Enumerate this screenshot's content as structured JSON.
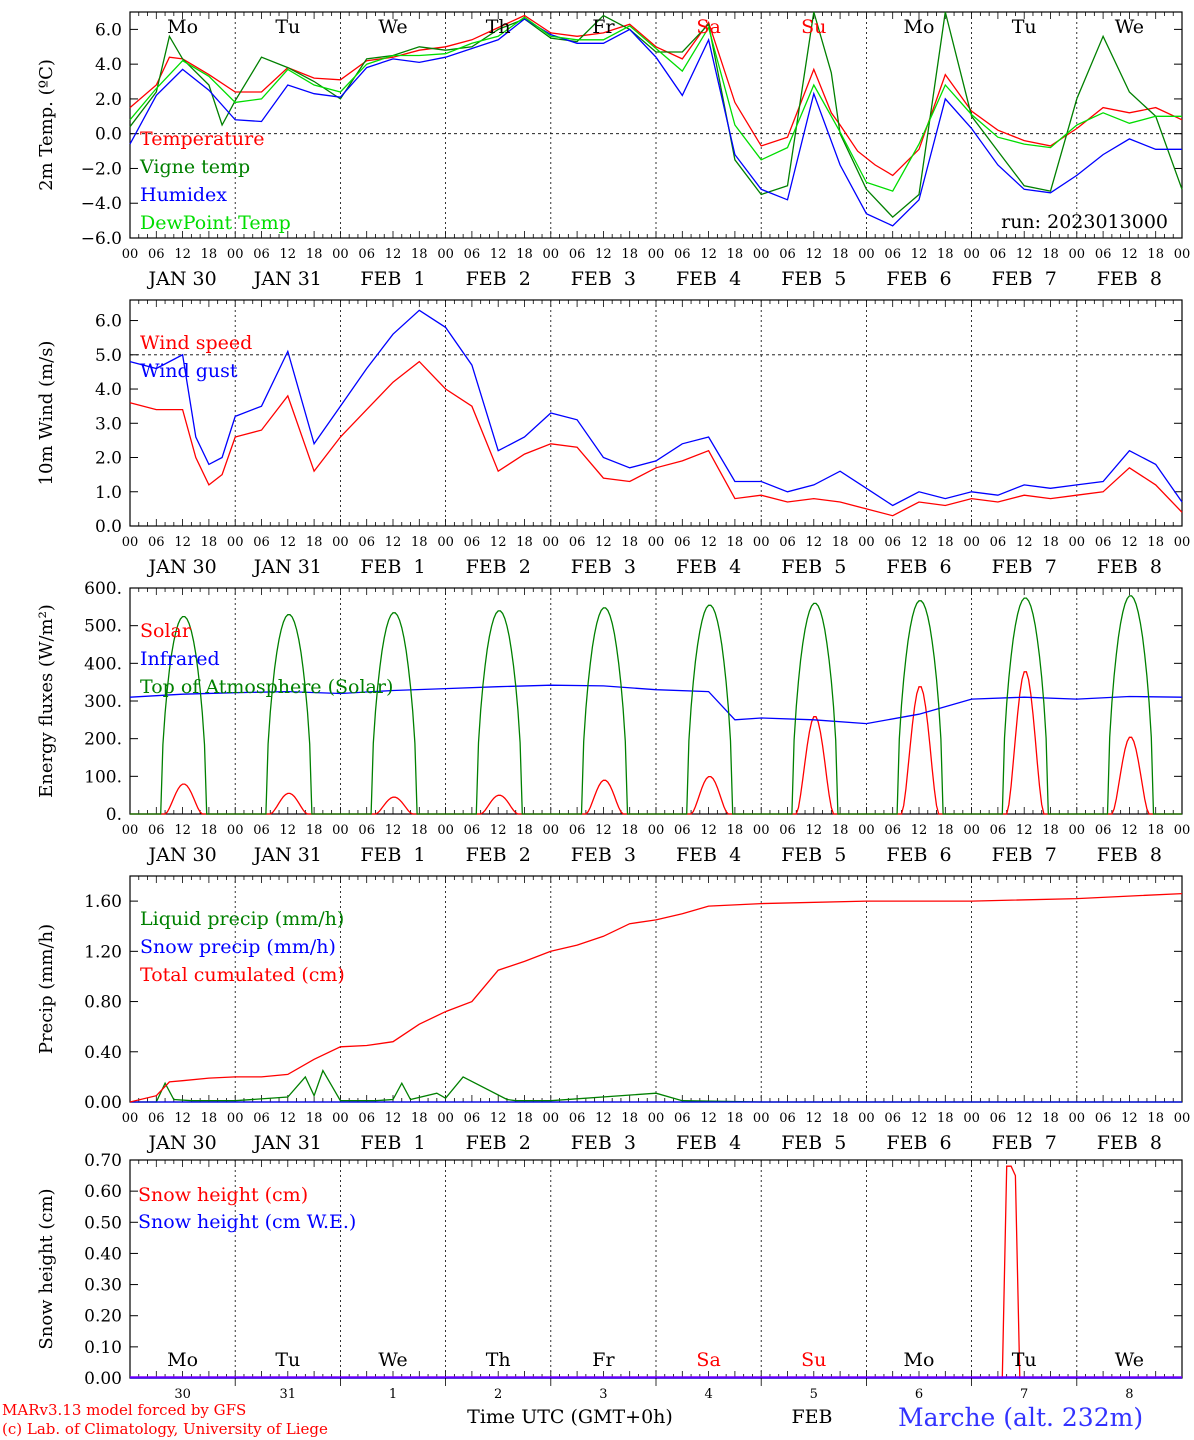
{
  "chart_data": [
    {
      "type": "line",
      "panel": "temperature",
      "ylabel": "2m Temp. (ºC)",
      "ylim": [
        -6,
        7
      ],
      "yticks": [
        "6.0",
        "4.0",
        "2.0",
        "0.0",
        "−2.0",
        "−4.0",
        "−6.0"
      ],
      "ytick_values": [
        6,
        4,
        2,
        0,
        -2,
        -4,
        -6
      ],
      "dashed_hline": 0,
      "day_labels": [
        "Mo",
        "Tu",
        "We",
        "Th",
        "Fr",
        "Sa",
        "Su",
        "Mo",
        "Tu",
        "We"
      ],
      "weekend_days": [
        "Sa",
        "Su"
      ],
      "run_label": "run: 2023013000",
      "x_unit": "hours since 2023-01-30 00 UTC",
      "series": [
        {
          "name": "Temperature",
          "color": "#ff0000",
          "x": [
            0,
            6,
            9,
            12,
            18,
            24,
            30,
            36,
            42,
            48,
            54,
            60,
            66,
            72,
            78,
            84,
            90,
            96,
            102,
            108,
            114,
            120,
            126,
            132,
            138,
            144,
            150,
            156,
            160,
            162,
            166,
            170,
            174,
            180,
            186,
            192,
            198,
            204,
            210,
            216,
            222,
            228,
            234,
            240
          ],
          "y": [
            1.5,
            2.8,
            4.4,
            4.3,
            3.4,
            2.4,
            2.4,
            3.8,
            3.2,
            3.1,
            4.2,
            4.4,
            4.8,
            5.0,
            5.4,
            6.1,
            6.8,
            5.8,
            5.6,
            5.8,
            6.3,
            5.0,
            4.3,
            6.4,
            1.8,
            -0.7,
            -0.2,
            3.7,
            1.2,
            0.5,
            -1.0,
            -1.8,
            -2.4,
            -0.9,
            3.4,
            1.3,
            0.2,
            -0.4,
            -0.7,
            0.3,
            1.5,
            1.2,
            1.5,
            0.8
          ]
        },
        {
          "name": "Vigne temp",
          "color": "#008000",
          "x": [
            0,
            6,
            9,
            12,
            18,
            21,
            24,
            30,
            36,
            42,
            48,
            54,
            60,
            66,
            72,
            78,
            84,
            90,
            96,
            102,
            108,
            114,
            120,
            126,
            132,
            138,
            144,
            150,
            156,
            160,
            162,
            168,
            174,
            180,
            186,
            192,
            198,
            204,
            210,
            216,
            222,
            228,
            234,
            240
          ],
          "y": [
            0.4,
            2.4,
            5.6,
            4.3,
            2.8,
            0.5,
            1.9,
            4.4,
            3.8,
            3.0,
            2.0,
            4.3,
            4.5,
            5.0,
            4.8,
            5.0,
            6.0,
            6.6,
            5.5,
            5.3,
            6.8,
            6.0,
            4.7,
            4.7,
            6.3,
            -1.5,
            -3.5,
            -3.0,
            7.0,
            3.5,
            0,
            -3.2,
            -4.8,
            -3.5,
            7.0,
            1.0,
            -1.0,
            -3.0,
            -3.3,
            2.0,
            5.6,
            2.4,
            1.0,
            -3.2
          ]
        },
        {
          "name": "Humidex",
          "color": "#0000ff",
          "x": [
            0,
            6,
            12,
            18,
            24,
            30,
            36,
            42,
            48,
            54,
            60,
            66,
            72,
            78,
            84,
            90,
            96,
            102,
            108,
            114,
            120,
            126,
            132,
            138,
            144,
            150,
            156,
            162,
            168,
            174,
            180,
            186,
            192,
            198,
            204,
            210,
            216,
            222,
            228,
            234,
            240
          ],
          "y": [
            -0.6,
            2.2,
            3.7,
            2.5,
            0.8,
            0.7,
            2.8,
            2.3,
            2.1,
            3.8,
            4.3,
            4.1,
            4.4,
            4.9,
            5.4,
            6.6,
            5.7,
            5.2,
            5.2,
            6.0,
            4.4,
            2.2,
            5.4,
            -1.2,
            -3.2,
            -3.8,
            2.3,
            -1.8,
            -4.6,
            -5.3,
            -3.8,
            2.0,
            0.3,
            -1.8,
            -3.2,
            -3.4,
            -2.4,
            -1.2,
            -0.3,
            -0.9,
            -0.9
          ]
        },
        {
          "name": "DewPoint Temp",
          "color": "#00dd00",
          "x": [
            0,
            6,
            12,
            18,
            24,
            30,
            36,
            42,
            48,
            54,
            60,
            66,
            72,
            78,
            84,
            90,
            96,
            102,
            108,
            114,
            120,
            126,
            132,
            138,
            144,
            150,
            156,
            162,
            168,
            174,
            180,
            186,
            192,
            198,
            204,
            210,
            216,
            222,
            228,
            234,
            240
          ],
          "y": [
            0.8,
            2.6,
            4.2,
            3.3,
            1.8,
            2.0,
            3.7,
            2.8,
            2.4,
            4.0,
            4.5,
            4.5,
            4.6,
            5.2,
            5.6,
            6.7,
            5.6,
            5.4,
            5.4,
            6.2,
            4.9,
            3.6,
            6.1,
            0.5,
            -1.5,
            -0.8,
            2.8,
            0.1,
            -2.8,
            -3.3,
            -0.6,
            2.8,
            1.1,
            -0.2,
            -0.6,
            -0.8,
            0.5,
            1.2,
            0.6,
            1.0,
            1.0
          ]
        }
      ]
    },
    {
      "type": "line",
      "panel": "wind",
      "ylabel": "10m Wind (m/s)",
      "ylim": [
        0,
        6.6
      ],
      "yticks": [
        "6.0",
        "5.0",
        "4.0",
        "3.0",
        "2.0",
        "1.0",
        "0.0"
      ],
      "ytick_values": [
        6,
        5,
        4,
        3,
        2,
        1,
        0
      ],
      "dashed_hline": 5,
      "series": [
        {
          "name": "Wind speed",
          "color": "#ff0000",
          "x": [
            0,
            6,
            12,
            15,
            18,
            21,
            24,
            30,
            36,
            42,
            48,
            54,
            60,
            66,
            72,
            78,
            84,
            90,
            96,
            102,
            108,
            114,
            120,
            126,
            132,
            138,
            144,
            150,
            156,
            162,
            168,
            174,
            180,
            186,
            192,
            198,
            204,
            210,
            216,
            222,
            228,
            234,
            240
          ],
          "y": [
            3.6,
            3.4,
            3.4,
            2.0,
            1.2,
            1.5,
            2.6,
            2.8,
            3.8,
            1.6,
            2.6,
            3.4,
            4.2,
            4.8,
            4.0,
            3.5,
            1.6,
            2.1,
            2.4,
            2.3,
            1.4,
            1.3,
            1.7,
            1.9,
            2.2,
            0.8,
            0.9,
            0.7,
            0.8,
            0.7,
            0.5,
            0.3,
            0.7,
            0.6,
            0.8,
            0.7,
            0.9,
            0.8,
            0.9,
            1.0,
            1.7,
            1.2,
            0.4
          ]
        },
        {
          "name": "Wind gust",
          "color": "#0000ff",
          "x": [
            0,
            6,
            12,
            15,
            18,
            21,
            24,
            30,
            36,
            42,
            48,
            54,
            60,
            66,
            72,
            78,
            84,
            90,
            96,
            102,
            108,
            114,
            120,
            126,
            132,
            138,
            144,
            150,
            156,
            162,
            168,
            174,
            180,
            186,
            192,
            198,
            204,
            210,
            216,
            222,
            228,
            234,
            240
          ],
          "y": [
            4.8,
            4.6,
            5.0,
            2.6,
            1.8,
            2.0,
            3.2,
            3.5,
            5.1,
            2.4,
            3.5,
            4.6,
            5.6,
            6.3,
            5.8,
            4.7,
            2.2,
            2.6,
            3.3,
            3.1,
            2.0,
            1.7,
            1.9,
            2.4,
            2.6,
            1.3,
            1.3,
            1.0,
            1.2,
            1.6,
            1.1,
            0.6,
            1.0,
            0.8,
            1.0,
            0.9,
            1.2,
            1.1,
            1.2,
            1.3,
            2.2,
            1.8,
            0.7
          ]
        }
      ]
    },
    {
      "type": "line",
      "panel": "energy",
      "ylabel": "Energy fluxes (W/m²)",
      "ylim": [
        0,
        600
      ],
      "yticks": [
        "600.",
        "500.",
        "400.",
        "300.",
        "200.",
        "100.",
        "0."
      ],
      "ytick_values": [
        600,
        500,
        400,
        300,
        200,
        100,
        0
      ],
      "series": [
        {
          "name": "Solar",
          "color": "#ff0000",
          "peaks": [
            {
              "day": 0,
              "value": 80
            },
            {
              "day": 1,
              "value": 55
            },
            {
              "day": 2,
              "value": 45
            },
            {
              "day": 3,
              "value": 50
            },
            {
              "day": 4,
              "value": 90
            },
            {
              "day": 5,
              "value": 100
            },
            {
              "day": 6,
              "value": 260
            },
            {
              "day": 7,
              "value": 340
            },
            {
              "day": 8,
              "value": 380
            },
            {
              "day": 9,
              "value": 205
            }
          ]
        },
        {
          "name": "Infrared",
          "color": "#0000ff",
          "x": [
            0,
            12,
            24,
            36,
            48,
            60,
            72,
            84,
            96,
            108,
            120,
            132,
            138,
            144,
            156,
            168,
            180,
            192,
            204,
            216,
            228,
            240
          ],
          "y": [
            310,
            318,
            322,
            325,
            320,
            328,
            333,
            338,
            342,
            340,
            330,
            325,
            250,
            255,
            250,
            240,
            265,
            305,
            310,
            305,
            312,
            310
          ]
        },
        {
          "name": "Top of Atmosphere (Solar)",
          "color": "#008000",
          "peaks": [
            {
              "day": 0,
              "value": 525
            },
            {
              "day": 1,
              "value": 530
            },
            {
              "day": 2,
              "value": 535
            },
            {
              "day": 3,
              "value": 540
            },
            {
              "day": 4,
              "value": 548
            },
            {
              "day": 5,
              "value": 555
            },
            {
              "day": 6,
              "value": 560
            },
            {
              "day": 7,
              "value": 567
            },
            {
              "day": 8,
              "value": 574
            },
            {
              "day": 9,
              "value": 580
            }
          ]
        }
      ]
    },
    {
      "type": "line",
      "panel": "precip",
      "ylabel": "Precip (mm/h)",
      "ylim": [
        0,
        1.8
      ],
      "yticks": [
        "1.60",
        "1.20",
        "0.80",
        "0.40",
        "0.00"
      ],
      "ytick_values": [
        1.6,
        1.2,
        0.8,
        0.4,
        0
      ],
      "series": [
        {
          "name": "Liquid precip (mm/h)",
          "color": "#008000",
          "x": [
            0,
            6,
            8,
            10,
            14,
            24,
            36,
            40,
            42,
            44,
            48,
            56,
            60,
            62,
            64,
            70,
            72,
            76,
            86,
            88,
            90,
            96,
            120,
            126,
            144,
            168,
            192,
            216,
            240
          ],
          "y": [
            0,
            0,
            0.15,
            0.02,
            0.01,
            0.01,
            0.04,
            0.2,
            0.05,
            0.25,
            0.01,
            0.01,
            0.02,
            0.15,
            0.02,
            0.07,
            0.03,
            0.2,
            0.02,
            0.01,
            0.01,
            0.01,
            0.07,
            0.01,
            0.0,
            0.0,
            0.0,
            0.0,
            0.0
          ]
        },
        {
          "name": "Snow precip (mm/h)",
          "color": "#0000ff",
          "x": [
            0,
            240
          ],
          "y": [
            0,
            0
          ]
        },
        {
          "name": "Total cumulated (cm)",
          "color": "#ff0000",
          "x": [
            0,
            6,
            9,
            12,
            18,
            24,
            30,
            36,
            42,
            48,
            54,
            60,
            66,
            72,
            78,
            84,
            90,
            96,
            102,
            108,
            114,
            120,
            126,
            132,
            144,
            168,
            192,
            216,
            240
          ],
          "y": [
            0,
            0.05,
            0.16,
            0.17,
            0.19,
            0.2,
            0.2,
            0.22,
            0.34,
            0.44,
            0.45,
            0.48,
            0.62,
            0.72,
            0.8,
            1.05,
            1.12,
            1.2,
            1.25,
            1.32,
            1.42,
            1.45,
            1.5,
            1.56,
            1.58,
            1.6,
            1.6,
            1.62,
            1.66
          ]
        }
      ]
    },
    {
      "type": "line",
      "panel": "snow",
      "ylabel": "Snow height (cm)",
      "ylim": [
        0,
        0.7
      ],
      "yticks": [
        "0.70",
        "0.60",
        "0.50",
        "0.40",
        "0.30",
        "0.20",
        "0.10",
        "0.00"
      ],
      "ytick_values": [
        0.7,
        0.6,
        0.5,
        0.4,
        0.3,
        0.2,
        0.1,
        0
      ],
      "series": [
        {
          "name": "Snow height (cm)",
          "color": "#ff0000",
          "x": [
            0,
            199,
            200,
            201,
            202,
            203,
            204,
            240
          ],
          "y": [
            0,
            0,
            0.68,
            0.68,
            0.65,
            0.0,
            0,
            0
          ]
        },
        {
          "name": "Snow height (cm W.E.)",
          "color": "#0000ff",
          "x": [
            0,
            240
          ],
          "y": [
            0,
            0
          ]
        }
      ],
      "day_labels": [
        "Mo",
        "Tu",
        "We",
        "Th",
        "Fr",
        "Sa",
        "Su",
        "Mo",
        "Tu",
        "We"
      ],
      "weekend_days": [
        "Sa",
        "Su"
      ],
      "date_numbers": [
        "30",
        "31",
        "1",
        "2",
        "3",
        "4",
        "5",
        "6",
        "7",
        "8"
      ],
      "month_label": "FEB",
      "xlabel": "Time UTC (GMT+0h)"
    }
  ],
  "x_axis": {
    "hour_ticks": [
      "00",
      "06",
      "12",
      "18"
    ],
    "date_labels": [
      "JAN 30",
      "JAN 31",
      "FEB  1",
      "FEB  2",
      "FEB  3",
      "FEB  4",
      "FEB  5",
      "FEB  6",
      "FEB  7",
      "FEB  8"
    ]
  },
  "footer": {
    "model_line": "MARv3.13 model forced by GFS",
    "lab_line": "(c) Lab. of Climatology, University of Liege",
    "station": "Marche (alt. 232m)"
  },
  "colors": {
    "red": "#ff0000",
    "blue": "#0000ff",
    "green": "#008000",
    "lightgreen": "#00dd00",
    "station": "#3333ff"
  }
}
